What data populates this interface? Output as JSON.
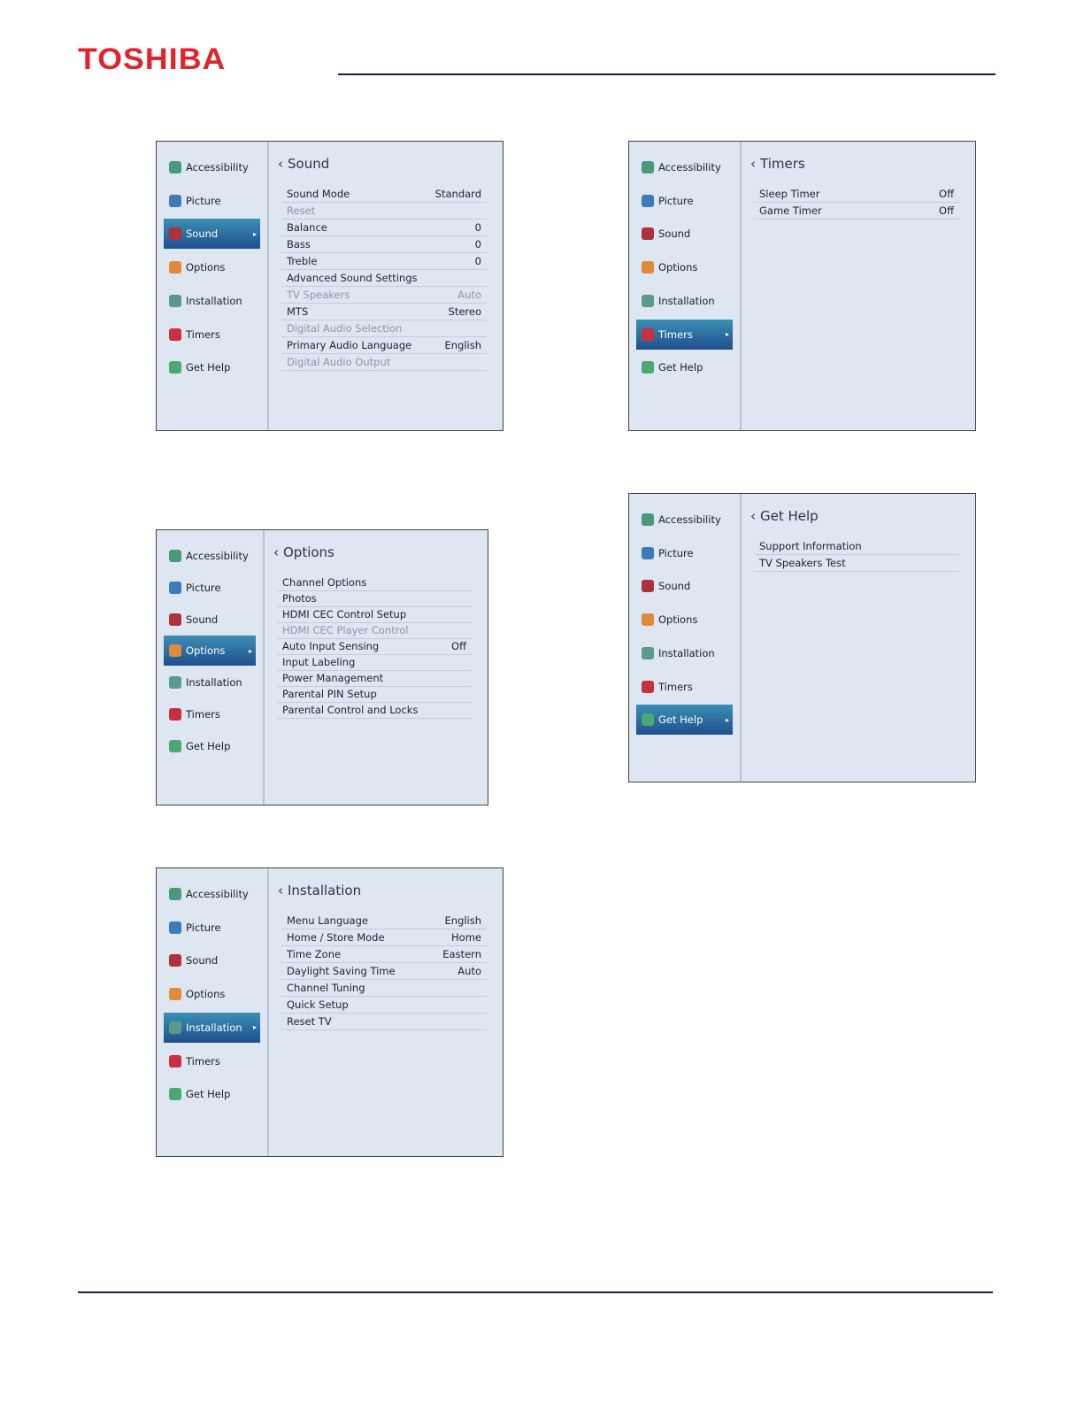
{
  "header": {
    "logo": "TOSHIBA"
  },
  "panels": [
    {
      "title": "Sound",
      "active": 2,
      "menu": [
        "Accessibility",
        "Picture",
        "Sound",
        "Options",
        "Installation",
        "Timers",
        "Get Help"
      ],
      "rows": [
        {
          "label": "Sound Mode",
          "value": "Standard"
        },
        {
          "label": "Reset",
          "dimmed": true
        },
        {
          "label": "Balance",
          "value": "0"
        },
        {
          "label": "Bass",
          "value": "0"
        },
        {
          "label": "Treble",
          "value": "0"
        },
        {
          "label": "Advanced Sound Settings"
        },
        {
          "label": "TV Speakers",
          "value": "Auto",
          "dimmed": true
        },
        {
          "label": "MTS",
          "value": "Stereo"
        },
        {
          "label": "Digital Audio Selection",
          "dimmed": true
        },
        {
          "label": "Primary Audio Language",
          "value": "English"
        },
        {
          "label": "Digital Audio Output",
          "dimmed": true
        }
      ]
    },
    {
      "title": "Options",
      "active": 3,
      "menu": [
        "Accessibility",
        "Picture",
        "Sound",
        "Options",
        "Installation",
        "Timers",
        "Get Help"
      ],
      "rows": [
        {
          "label": "Channel Options"
        },
        {
          "label": "Photos"
        },
        {
          "label": "HDMI CEC Control Setup"
        },
        {
          "label": "HDMI CEC Player Control",
          "dimmed": true
        },
        {
          "label": "Auto Input Sensing",
          "value": "Off"
        },
        {
          "label": "Input Labeling"
        },
        {
          "label": "Power Management"
        },
        {
          "label": "Parental PIN Setup"
        },
        {
          "label": "Parental Control and Locks"
        }
      ]
    },
    {
      "title": "Installation",
      "active": 4,
      "menu": [
        "Accessibility",
        "Picture",
        "Sound",
        "Options",
        "Installation",
        "Timers",
        "Get Help"
      ],
      "rows": [
        {
          "label": "Menu Language",
          "value": "English"
        },
        {
          "label": "Home / Store Mode",
          "value": "Home"
        },
        {
          "label": "Time Zone",
          "value": "Eastern"
        },
        {
          "label": "Daylight Saving Time",
          "value": "Auto"
        },
        {
          "label": "Channel Tuning"
        },
        {
          "label": "Quick Setup"
        },
        {
          "label": "Reset TV"
        }
      ]
    },
    {
      "title": "Timers",
      "active": 5,
      "menu": [
        "Accessibility",
        "Picture",
        "Sound",
        "Options",
        "Installation",
        "Timers",
        "Get Help"
      ],
      "rows": [
        {
          "label": "Sleep Timer",
          "value": "Off"
        },
        {
          "label": "Game Timer",
          "value": "Off"
        }
      ]
    },
    {
      "title": "Get Help",
      "active": 6,
      "menu": [
        "Accessibility",
        "Picture",
        "Sound",
        "Options",
        "Installation",
        "Timers",
        "Get Help"
      ],
      "rows": [
        {
          "label": "Support Information"
        },
        {
          "label": "TV Speakers Test"
        }
      ]
    }
  ]
}
